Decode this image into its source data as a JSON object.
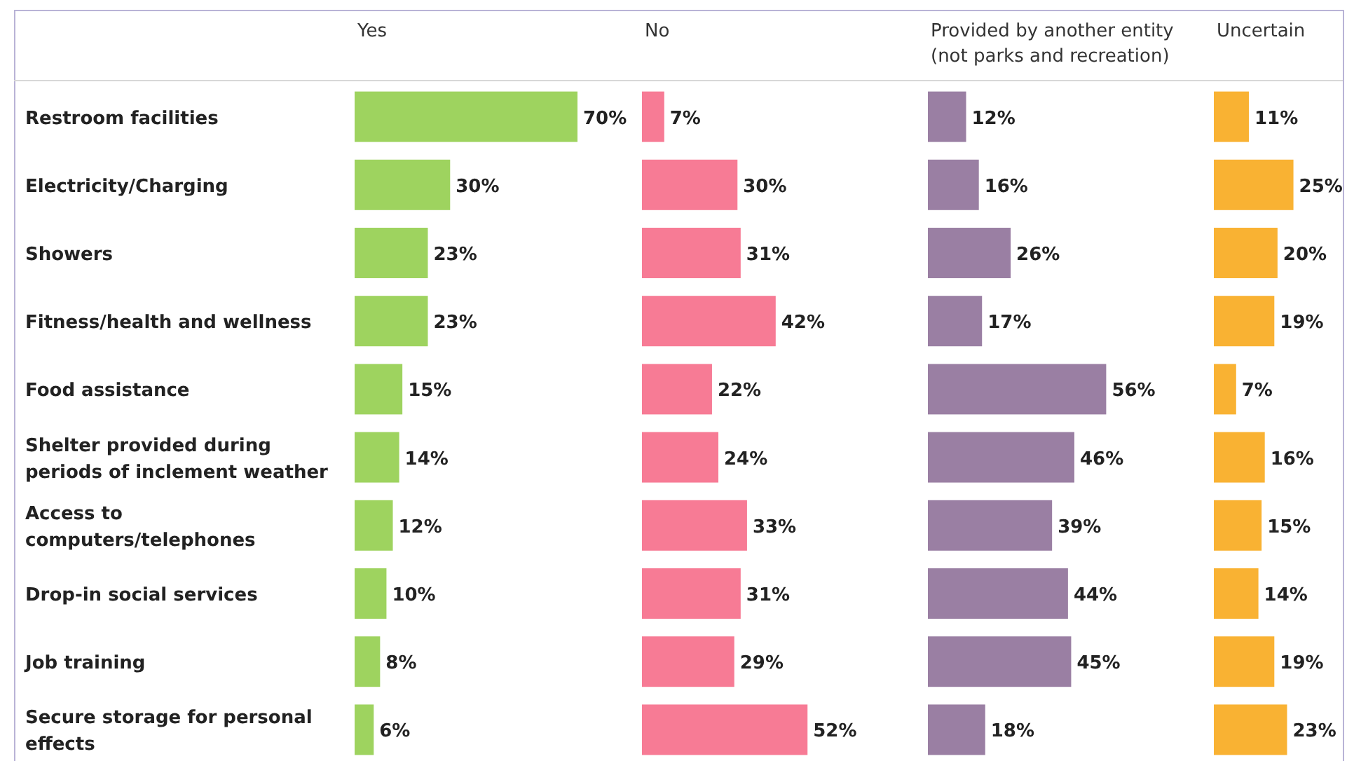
{
  "chart_data": [
    {
      "type": "bar",
      "orientation": "horizontal",
      "title": "Yes",
      "categories": [
        "Restroom facilities",
        "Electricity/Charging",
        "Showers",
        "Fitness/health and wellness",
        "Food assistance",
        "Shelter provided during periods of inclement weather",
        "Access to computers/telephones",
        "Drop-in social services",
        "Job training",
        "Secure storage for personal effects"
      ],
      "values": [
        70,
        30,
        23,
        23,
        15,
        14,
        12,
        10,
        8,
        6
      ],
      "value_labels": [
        "70%",
        "30%",
        "23%",
        "23%",
        "15%",
        "14%",
        "12%",
        "10%",
        "8%",
        "6%"
      ],
      "color": "#9ed35f",
      "tick_labels": "y"
    },
    {
      "type": "bar",
      "orientation": "horizontal",
      "title": "No",
      "categories": [
        null,
        null,
        null,
        null,
        null,
        null,
        null,
        null,
        null,
        null
      ],
      "values": [
        7,
        30,
        31,
        42,
        22,
        24,
        33,
        31,
        29,
        52
      ],
      "value_labels": [
        "7%",
        "30%",
        "31%",
        "42%",
        "22%",
        "24%",
        "33%",
        "31%",
        "29%",
        "52%"
      ],
      "color": "#f77b95"
    },
    {
      "type": "bar",
      "orientation": "horizontal",
      "title": "Provided by another entity (not parks and recreation)",
      "categories": [
        null,
        null,
        null,
        null,
        null,
        null,
        null,
        null,
        null,
        null
      ],
      "values": [
        12,
        16,
        26,
        17,
        56,
        46,
        39,
        44,
        45,
        18
      ],
      "value_labels": [
        "12%",
        "16%",
        "26%",
        "17%",
        "56%",
        "46%",
        "39%",
        "44%",
        "45%",
        "18%"
      ],
      "color": "#9a7fa3"
    },
    {
      "type": "bar",
      "orientation": "horizontal",
      "title": "Uncertain",
      "categories": [
        null,
        null,
        null,
        null,
        null,
        null,
        null,
        null,
        null,
        null
      ],
      "values": [
        11,
        25,
        20,
        19,
        7,
        16,
        15,
        14,
        19,
        23
      ],
      "value_labels": [
        "11%",
        "25%",
        "20%",
        "19%",
        "7%",
        "16%",
        "15%",
        "14%",
        "19%",
        "23%"
      ],
      "color": "#f9b233"
    }
  ]
}
